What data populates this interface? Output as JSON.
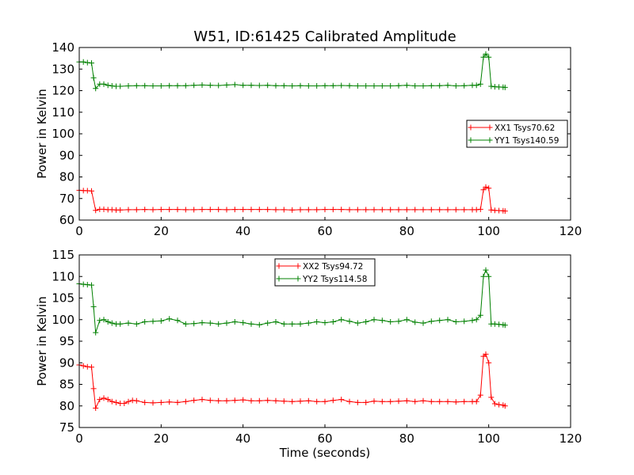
{
  "chart_data": [
    {
      "type": "line",
      "title": "W51, ID:61425 Calibrated Amplitude",
      "xlabel": "",
      "ylabel": "Power in Kelvin",
      "xlim": [
        0,
        120
      ],
      "ylim": [
        60,
        140
      ],
      "xticks": [
        0,
        20,
        40,
        60,
        80,
        100,
        120
      ],
      "yticks": [
        60,
        70,
        80,
        90,
        100,
        110,
        120,
        130,
        140
      ],
      "legend_position": "center-right",
      "series": [
        {
          "name": "XX1 Tsys70.62",
          "color": "#ff0000",
          "marker": "plus",
          "points": [
            [
              0,
              73.8
            ],
            [
              1,
              73.7
            ],
            [
              2,
              73.6
            ],
            [
              3,
              73.5
            ],
            [
              4,
              64.5
            ],
            [
              5,
              65.0
            ],
            [
              6,
              65.0
            ],
            [
              7,
              64.8
            ],
            [
              8,
              64.8
            ],
            [
              9,
              64.7
            ],
            [
              10,
              64.7
            ],
            [
              12,
              64.8
            ],
            [
              14,
              64.8
            ],
            [
              16,
              64.9
            ],
            [
              18,
              64.8
            ],
            [
              20,
              64.9
            ],
            [
              22,
              64.9
            ],
            [
              24,
              64.9
            ],
            [
              26,
              64.8
            ],
            [
              28,
              64.8
            ],
            [
              30,
              64.9
            ],
            [
              32,
              64.9
            ],
            [
              34,
              64.9
            ],
            [
              36,
              64.8
            ],
            [
              38,
              64.9
            ],
            [
              40,
              64.9
            ],
            [
              42,
              64.9
            ],
            [
              44,
              64.9
            ],
            [
              46,
              64.9
            ],
            [
              48,
              64.8
            ],
            [
              50,
              64.8
            ],
            [
              52,
              64.7
            ],
            [
              54,
              64.8
            ],
            [
              56,
              64.8
            ],
            [
              58,
              64.8
            ],
            [
              60,
              64.9
            ],
            [
              62,
              64.9
            ],
            [
              64,
              64.9
            ],
            [
              66,
              64.8
            ],
            [
              68,
              64.8
            ],
            [
              70,
              64.8
            ],
            [
              72,
              64.8
            ],
            [
              74,
              64.8
            ],
            [
              76,
              64.8
            ],
            [
              78,
              64.8
            ],
            [
              80,
              64.8
            ],
            [
              82,
              64.8
            ],
            [
              84,
              64.8
            ],
            [
              86,
              64.8
            ],
            [
              88,
              64.8
            ],
            [
              90,
              64.8
            ],
            [
              92,
              64.8
            ],
            [
              94,
              64.8
            ],
            [
              96,
              64.8
            ],
            [
              97,
              64.8
            ],
            [
              98,
              65.0
            ],
            [
              98.7,
              74.0
            ],
            [
              99.3,
              75.3
            ],
            [
              100,
              74.8
            ],
            [
              100.6,
              64.7
            ],
            [
              101.5,
              64.5
            ],
            [
              102.5,
              64.4
            ],
            [
              103.5,
              64.3
            ],
            [
              104,
              64.2
            ]
          ]
        },
        {
          "name": "YY1 Tsys140.59",
          "color": "#008000",
          "marker": "plus",
          "points": [
            [
              0,
              133.3
            ],
            [
              1,
              133.3
            ],
            [
              2,
              133.0
            ],
            [
              3,
              132.8
            ],
            [
              3.5,
              126.0
            ],
            [
              4,
              121.0
            ],
            [
              5,
              123.0
            ],
            [
              6,
              123.0
            ],
            [
              7,
              122.5
            ],
            [
              8,
              122.2
            ],
            [
              9,
              122.0
            ],
            [
              10,
              122.0
            ],
            [
              12,
              122.2
            ],
            [
              14,
              122.3
            ],
            [
              16,
              122.3
            ],
            [
              18,
              122.2
            ],
            [
              20,
              122.2
            ],
            [
              22,
              122.3
            ],
            [
              24,
              122.3
            ],
            [
              26,
              122.3
            ],
            [
              28,
              122.5
            ],
            [
              30,
              122.6
            ],
            [
              32,
              122.5
            ],
            [
              34,
              122.4
            ],
            [
              36,
              122.6
            ],
            [
              38,
              122.8
            ],
            [
              40,
              122.5
            ],
            [
              42,
              122.5
            ],
            [
              44,
              122.4
            ],
            [
              46,
              122.5
            ],
            [
              48,
              122.3
            ],
            [
              50,
              122.3
            ],
            [
              52,
              122.2
            ],
            [
              54,
              122.3
            ],
            [
              56,
              122.2
            ],
            [
              58,
              122.2
            ],
            [
              60,
              122.3
            ],
            [
              62,
              122.3
            ],
            [
              64,
              122.4
            ],
            [
              66,
              122.3
            ],
            [
              68,
              122.2
            ],
            [
              70,
              122.2
            ],
            [
              72,
              122.2
            ],
            [
              74,
              122.2
            ],
            [
              76,
              122.2
            ],
            [
              78,
              122.3
            ],
            [
              80,
              122.5
            ],
            [
              82,
              122.2
            ],
            [
              84,
              122.2
            ],
            [
              86,
              122.3
            ],
            [
              88,
              122.3
            ],
            [
              90,
              122.5
            ],
            [
              92,
              122.2
            ],
            [
              94,
              122.3
            ],
            [
              96,
              122.5
            ],
            [
              97,
              122.5
            ],
            [
              98,
              123.0
            ],
            [
              98.7,
              135.5
            ],
            [
              99.3,
              137.0
            ],
            [
              100,
              135.5
            ],
            [
              100.6,
              122.0
            ],
            [
              101.5,
              121.8
            ],
            [
              102.5,
              121.7
            ],
            [
              103.5,
              121.6
            ],
            [
              104,
              121.5
            ]
          ]
        }
      ]
    },
    {
      "type": "line",
      "title": "",
      "xlabel": "Time (seconds)",
      "ylabel": "Power in Kelvin",
      "xlim": [
        0,
        120
      ],
      "ylim": [
        75,
        115
      ],
      "xticks": [
        0,
        20,
        40,
        60,
        80,
        100,
        120
      ],
      "yticks": [
        75,
        80,
        85,
        90,
        95,
        100,
        105,
        110,
        115
      ],
      "legend_position": "upper-center",
      "series": [
        {
          "name": "XX2 Tsys94.72",
          "color": "#ff0000",
          "marker": "plus",
          "points": [
            [
              0,
              89.5
            ],
            [
              1,
              89.3
            ],
            [
              2,
              89.1
            ],
            [
              3,
              89.0
            ],
            [
              3.5,
              84.0
            ],
            [
              4,
              79.5
            ],
            [
              5,
              81.5
            ],
            [
              6,
              81.8
            ],
            [
              7,
              81.5
            ],
            [
              8,
              81.0
            ],
            [
              9,
              80.8
            ],
            [
              10,
              80.6
            ],
            [
              11,
              80.6
            ],
            [
              12,
              81.0
            ],
            [
              13,
              81.3
            ],
            [
              14,
              81.2
            ],
            [
              16,
              80.8
            ],
            [
              18,
              80.7
            ],
            [
              20,
              80.8
            ],
            [
              22,
              80.9
            ],
            [
              24,
              80.8
            ],
            [
              26,
              81.0
            ],
            [
              28,
              81.3
            ],
            [
              30,
              81.5
            ],
            [
              32,
              81.3
            ],
            [
              34,
              81.2
            ],
            [
              36,
              81.2
            ],
            [
              38,
              81.3
            ],
            [
              40,
              81.4
            ],
            [
              42,
              81.2
            ],
            [
              44,
              81.2
            ],
            [
              46,
              81.3
            ],
            [
              48,
              81.2
            ],
            [
              50,
              81.1
            ],
            [
              52,
              81.0
            ],
            [
              54,
              81.1
            ],
            [
              56,
              81.2
            ],
            [
              58,
              81.0
            ],
            [
              60,
              81.0
            ],
            [
              62,
              81.3
            ],
            [
              64,
              81.5
            ],
            [
              66,
              81.0
            ],
            [
              68,
              80.8
            ],
            [
              70,
              80.8
            ],
            [
              72,
              81.1
            ],
            [
              74,
              81.0
            ],
            [
              76,
              81.0
            ],
            [
              78,
              81.1
            ],
            [
              80,
              81.2
            ],
            [
              82,
              81.0
            ],
            [
              84,
              81.2
            ],
            [
              86,
              81.0
            ],
            [
              88,
              81.0
            ],
            [
              90,
              81.0
            ],
            [
              92,
              80.9
            ],
            [
              94,
              81.0
            ],
            [
              96,
              81.0
            ],
            [
              97,
              81.0
            ],
            [
              98,
              82.5
            ],
            [
              98.7,
              91.5
            ],
            [
              99.3,
              92.0
            ],
            [
              100,
              90.0
            ],
            [
              100.6,
              82.0
            ],
            [
              101.5,
              80.5
            ],
            [
              102.5,
              80.3
            ],
            [
              103.5,
              80.2
            ],
            [
              104,
              80.0
            ]
          ]
        },
        {
          "name": "YY2 Tsys114.58",
          "color": "#008000",
          "marker": "plus",
          "points": [
            [
              0,
              108.3
            ],
            [
              1,
              108.2
            ],
            [
              2,
              108.1
            ],
            [
              3,
              108.0
            ],
            [
              3.5,
              103.0
            ],
            [
              4,
              97.0
            ],
            [
              5,
              99.8
            ],
            [
              6,
              100.0
            ],
            [
              7,
              99.5
            ],
            [
              8,
              99.2
            ],
            [
              9,
              99.0
            ],
            [
              10,
              99.0
            ],
            [
              12,
              99.2
            ],
            [
              14,
              99.0
            ],
            [
              16,
              99.5
            ],
            [
              18,
              99.6
            ],
            [
              20,
              99.7
            ],
            [
              22,
              100.2
            ],
            [
              24,
              99.8
            ],
            [
              26,
              99.0
            ],
            [
              28,
              99.1
            ],
            [
              30,
              99.3
            ],
            [
              32,
              99.2
            ],
            [
              34,
              99.0
            ],
            [
              36,
              99.2
            ],
            [
              38,
              99.5
            ],
            [
              40,
              99.3
            ],
            [
              42,
              99.0
            ],
            [
              44,
              98.8
            ],
            [
              46,
              99.2
            ],
            [
              48,
              99.5
            ],
            [
              50,
              99.0
            ],
            [
              52,
              99.0
            ],
            [
              54,
              99.0
            ],
            [
              56,
              99.2
            ],
            [
              58,
              99.5
            ],
            [
              60,
              99.3
            ],
            [
              62,
              99.5
            ],
            [
              64,
              100.0
            ],
            [
              66,
              99.6
            ],
            [
              68,
              99.2
            ],
            [
              70,
              99.5
            ],
            [
              72,
              100.0
            ],
            [
              74,
              99.8
            ],
            [
              76,
              99.5
            ],
            [
              78,
              99.6
            ],
            [
              80,
              100.0
            ],
            [
              82,
              99.4
            ],
            [
              84,
              99.2
            ],
            [
              86,
              99.6
            ],
            [
              88,
              99.8
            ],
            [
              90,
              100.0
            ],
            [
              92,
              99.5
            ],
            [
              94,
              99.6
            ],
            [
              96,
              99.8
            ],
            [
              97,
              100.0
            ],
            [
              98,
              101.0
            ],
            [
              98.7,
              110.0
            ],
            [
              99.3,
              111.5
            ],
            [
              100,
              110.0
            ],
            [
              100.6,
              99.0
            ],
            [
              101.5,
              99.0
            ],
            [
              102.5,
              98.9
            ],
            [
              103.5,
              98.8
            ],
            [
              104,
              98.7
            ]
          ]
        }
      ]
    }
  ]
}
